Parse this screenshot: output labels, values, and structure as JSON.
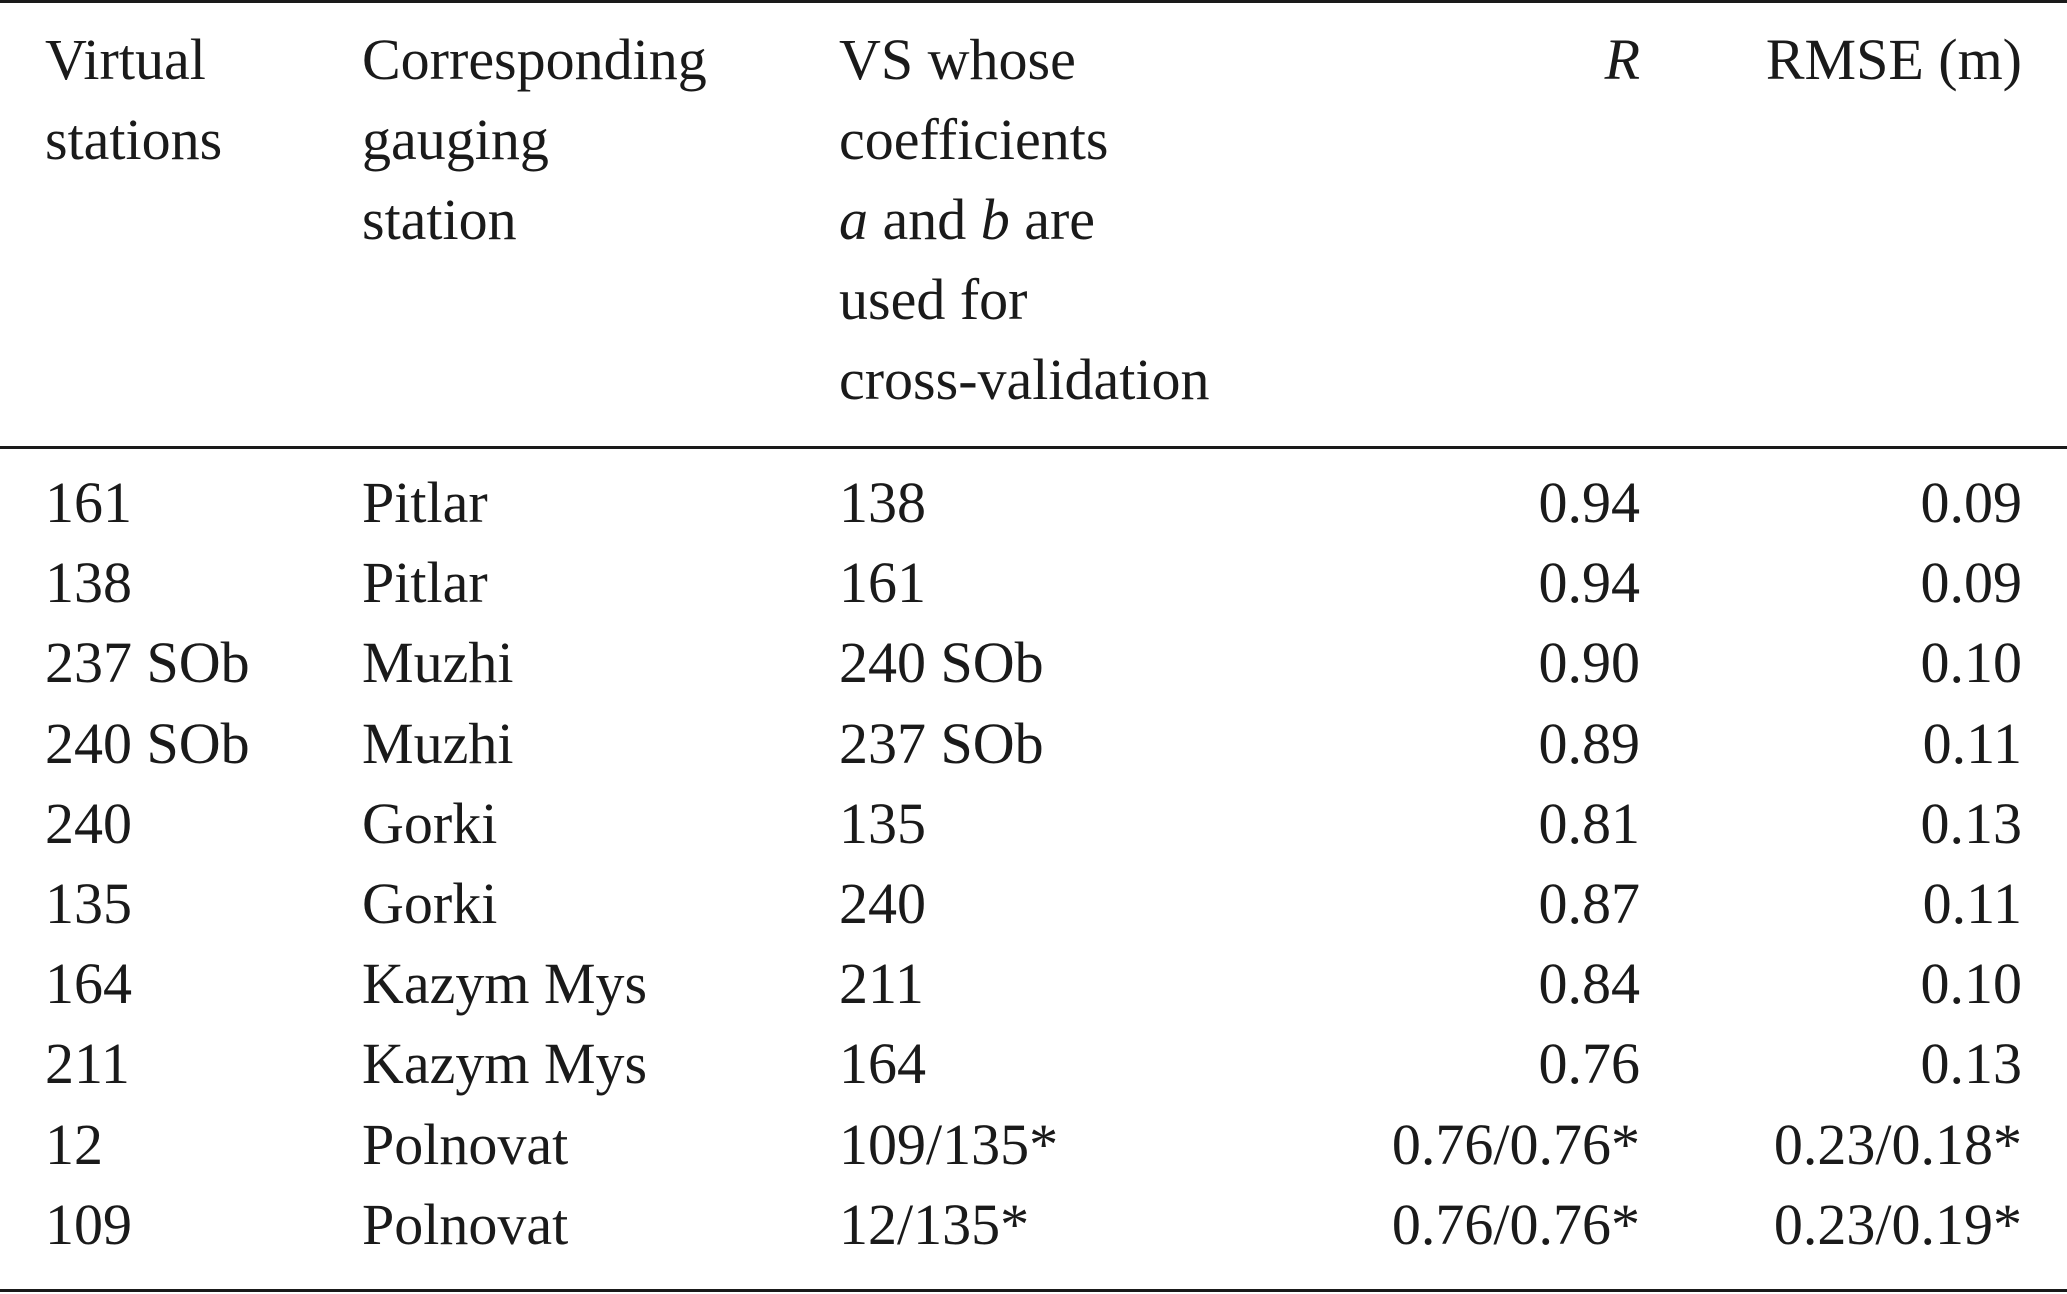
{
  "header": {
    "col1": [
      "Virtual",
      "stations"
    ],
    "col2": [
      "Corresponding",
      "gauging",
      "station"
    ],
    "col3": {
      "line1": "VS whose",
      "line2": "coefficients",
      "line3_a": "a",
      "line3_and": " and ",
      "line3_b": "b",
      "line3_rest": " are",
      "line4": "used for",
      "line5": "cross-validation"
    },
    "col4": "R",
    "col5": "RMSE (m)"
  },
  "rows": [
    [
      "161",
      "Pitlar",
      "138",
      "0.94",
      "0.09"
    ],
    [
      "138",
      "Pitlar",
      "161",
      "0.94",
      "0.09"
    ],
    [
      "237 SOb",
      "Muzhi",
      "240 SOb",
      "0.90",
      "0.10"
    ],
    [
      "240 SOb",
      "Muzhi",
      "237 SOb",
      "0.89",
      "0.11"
    ],
    [
      "240",
      "Gorki",
      "135",
      "0.81",
      "0.13"
    ],
    [
      "135",
      "Gorki",
      "240",
      "0.87",
      "0.11"
    ],
    [
      "164",
      "Kazym Mys",
      "211",
      "0.84",
      "0.10"
    ],
    [
      "211",
      "Kazym Mys",
      "164",
      "0.76",
      "0.13"
    ],
    [
      "12",
      "Polnovat",
      "109/135*",
      "0.76/0.76*",
      "0.23/0.18*"
    ],
    [
      "109",
      "Polnovat",
      "12/135*",
      "0.76/0.76*",
      "0.23/0.19*"
    ]
  ]
}
